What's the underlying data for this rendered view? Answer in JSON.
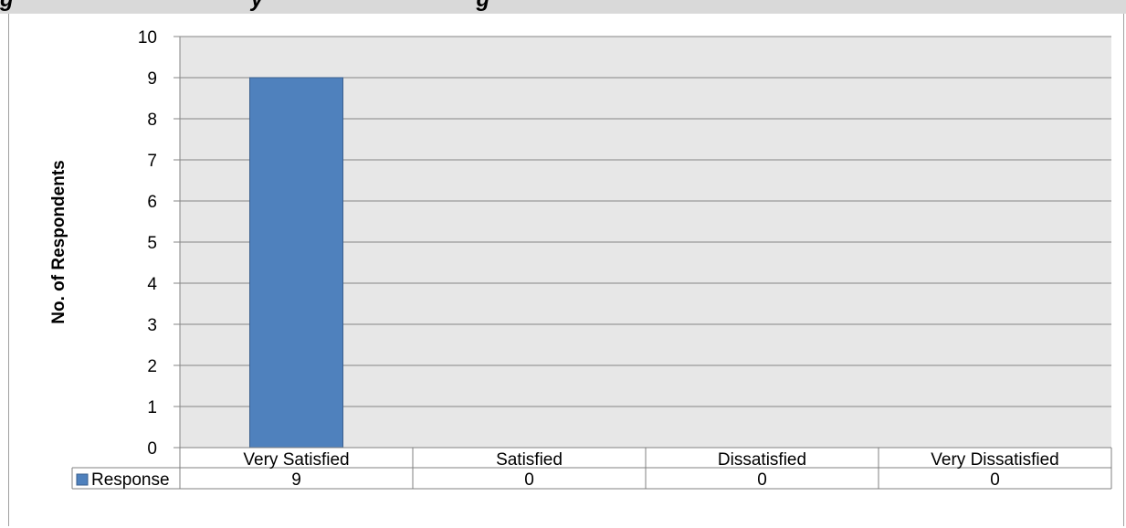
{
  "header": {
    "title": "g                                       y                                   g"
  },
  "chart_data": {
    "type": "bar",
    "title": "",
    "xlabel": "",
    "ylabel": "No. of Respondents",
    "categories": [
      "Very Satisfied",
      "Satisfied",
      "Dissatisfied",
      "Very Dissatisfied"
    ],
    "series": [
      {
        "name": "Response",
        "values": [
          9,
          0,
          0,
          0
        ],
        "color": "#4f81bd"
      }
    ],
    "ylim": [
      0,
      10
    ],
    "yticks": [
      0,
      1,
      2,
      3,
      4,
      5,
      6,
      7,
      8,
      9,
      10
    ],
    "grid": true,
    "data_table": true,
    "legend": "data-table",
    "colors": {
      "plot_background": "#e7e7e7",
      "gridline": "#868686",
      "bar_border": "#3a5f8e"
    }
  }
}
